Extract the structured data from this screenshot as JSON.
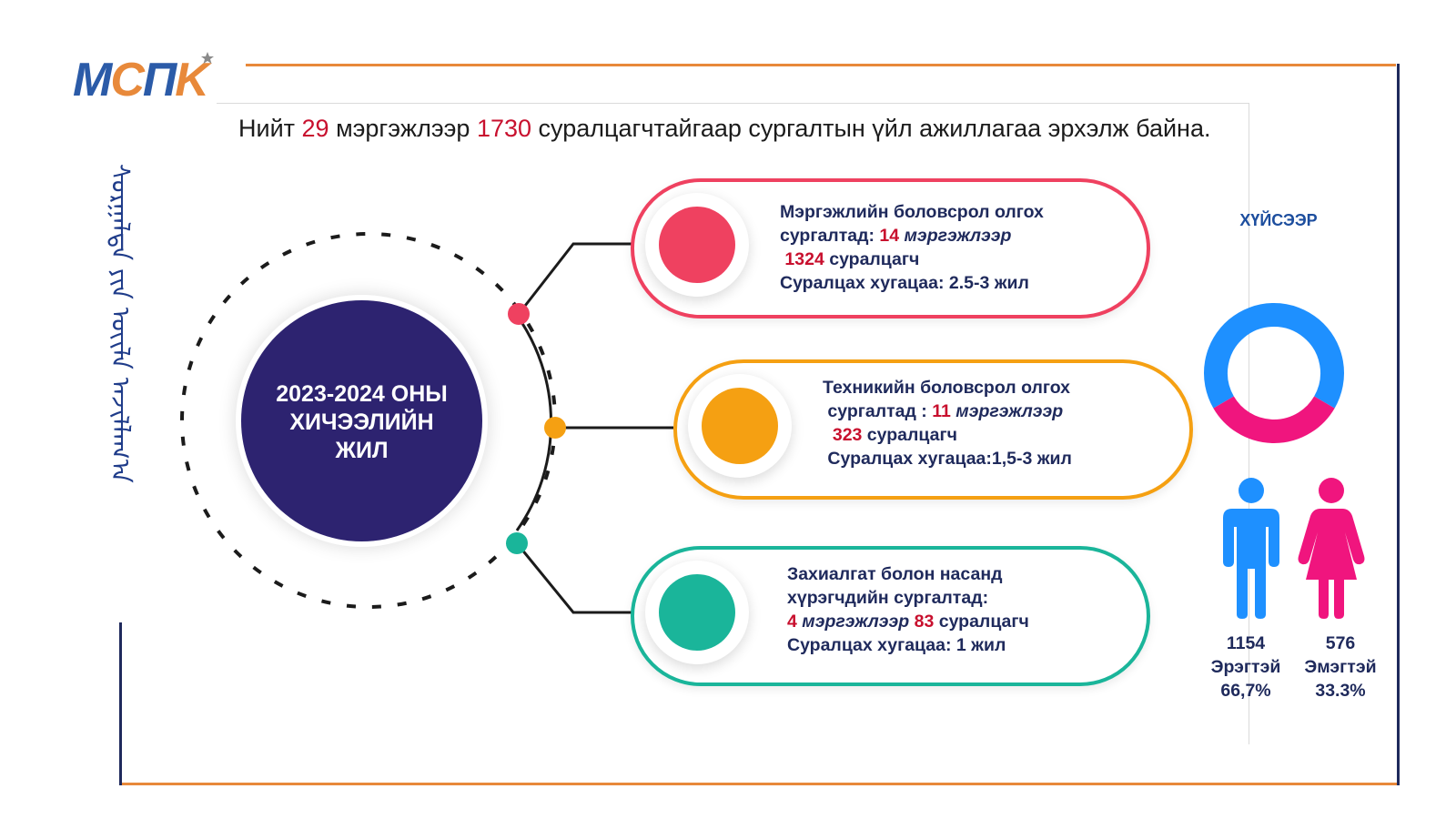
{
  "logo": {
    "m": "M",
    "c": "C",
    "p": "П",
    "k": "K"
  },
  "headline": {
    "part1": "Нийт ",
    "num1": "29",
    "part2": " мэргэжлээр ",
    "num2": "1730",
    "part3": " суралцагчтайгаар сургалтын үйл ажиллагаа эрхэлж байна."
  },
  "mongol_script": "ᠰᠤᠷᠭᠠᠯᠲᠠ ᠶᠢᠨ ᠦᠢᠯᠡ ᠠᠵᠢᠯᠯᠠᠭ᠎ᠠ",
  "center": {
    "line1": "2023-2024 ОНЫ",
    "line2": "ХИЧЭЭЛИЙН",
    "line3": "ЖИЛ"
  },
  "cards": [
    {
      "color": "#ef4160",
      "line1": "Мэргэжлийн боловсрол олгох",
      "line2_pre": "сургалтад: ",
      "line2_num": "14",
      "line2_word": " мэргэжлээр",
      "line3_num": "1324",
      "line3_word": " суралцагч",
      "line4": "Суралцах хугацаа: 2.5-3 жил"
    },
    {
      "color": "#f5a012",
      "line1": "Техникийн боловсрол олгох",
      "line2_pre": "сургалтад : ",
      "line2_num": "11",
      "line2_word": " мэргэжлээр",
      "line3_num": "323",
      "line3_word": " суралцагч",
      "line4": "Суралцах хугацаа:1,5-3 жил"
    },
    {
      "color": "#1ab59a",
      "line1": "Захиалгат болон насанд",
      "line2": "хүрэгчдийн сургалтад:",
      "line3_num1": "4",
      "line3_word1": " мэргэжлээр ",
      "line3_num2": "83",
      "line3_word2": " суралцагч",
      "line4": "Суралцах хугацаа: 1 жил"
    }
  ],
  "gender": {
    "title": "ХҮЙСЭЭР",
    "male": {
      "count": "1154",
      "label": "Эрэгтэй",
      "percent": "66,7%",
      "color": "#1e90ff",
      "share": 0.667
    },
    "female": {
      "count": "576",
      "label": "Эмэгтэй",
      "percent": "33.3%",
      "color": "#f0157e",
      "share": 0.333
    }
  },
  "colors": {
    "accent_orange": "#e8893a",
    "navy": "#1f2a5c",
    "center_circle": "#2d2370",
    "headline_red": "#c8102e"
  }
}
